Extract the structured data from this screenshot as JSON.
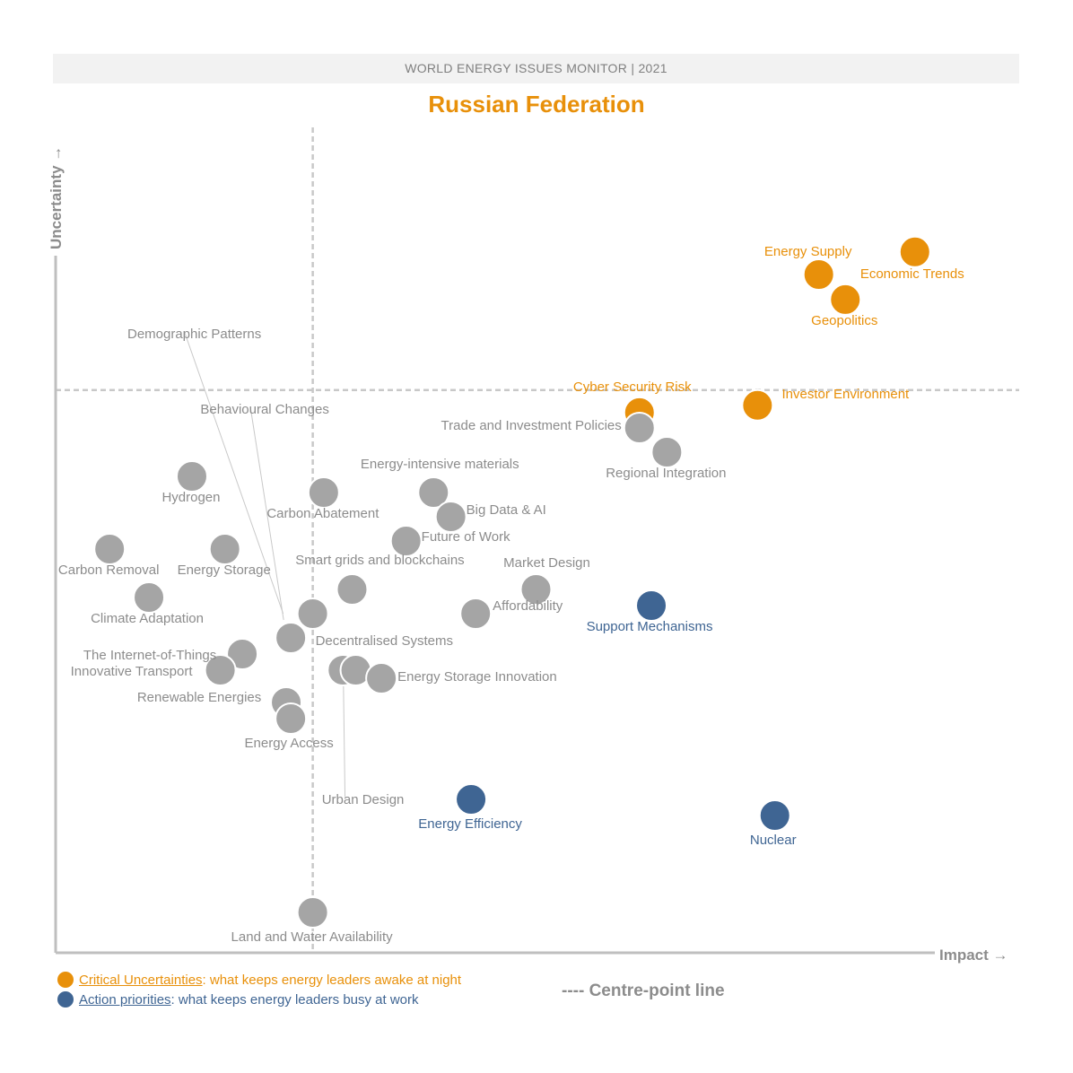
{
  "header": {
    "banner": "WORLD ENERGY ISSUES MONITOR | 2021",
    "title": "Russian Federation"
  },
  "legend": {
    "critical_key": "Critical Uncertainties",
    "critical_text": ": what keeps energy leaders awake at night",
    "action_key": "Action priorities",
    "action_text": ": what keeps energy leaders busy at work",
    "centre_line": "---- Centre-point line"
  },
  "colors": {
    "critical": "#e8900a",
    "action": "#3f6593",
    "neutral": "#a5a5a5",
    "axis": "#bfbfbf",
    "label_grey": "#8c8c8c"
  },
  "chart_data": {
    "type": "scatter",
    "xlabel": "Impact",
    "ylabel": "Uncertainty",
    "xlim": [
      0,
      100
    ],
    "ylim": [
      0,
      100
    ],
    "centre_x": 28.1,
    "centre_y": 69.7,
    "points": [
      {
        "name": "Economic Trends",
        "x": 93.9,
        "y": 86.8,
        "category": "critical"
      },
      {
        "name": "Energy Supply",
        "x": 83.4,
        "y": 84.0,
        "category": "critical"
      },
      {
        "name": "Geopolitics",
        "x": 86.3,
        "y": 80.9,
        "category": "critical"
      },
      {
        "name": "Investor Environment",
        "x": 76.7,
        "y": 67.8,
        "category": "critical"
      },
      {
        "name": "Cyber Security Risk",
        "x": 63.8,
        "y": 66.9,
        "category": "critical"
      },
      {
        "name": "Trade and Investment Policies",
        "x": 63.8,
        "y": 65.0,
        "category": "neutral"
      },
      {
        "name": "Regional Integration",
        "x": 66.8,
        "y": 62.0,
        "category": "neutral"
      },
      {
        "name": "Hydrogen",
        "x": 14.9,
        "y": 59.0,
        "category": "neutral"
      },
      {
        "name": "Carbon Abatement",
        "x": 29.3,
        "y": 57.0,
        "category": "neutral"
      },
      {
        "name": "Energy-intensive materials",
        "x": 41.3,
        "y": 57.0,
        "category": "neutral"
      },
      {
        "name": "Big Data & AI",
        "x": 43.2,
        "y": 54.0,
        "category": "neutral"
      },
      {
        "name": "Future of Work",
        "x": 38.3,
        "y": 51.0,
        "category": "neutral"
      },
      {
        "name": "Carbon Removal",
        "x": 5.9,
        "y": 50.0,
        "category": "neutral"
      },
      {
        "name": "Energy Storage",
        "x": 18.5,
        "y": 50.0,
        "category": "neutral"
      },
      {
        "name": "Smart grids and blockchains",
        "x": 32.4,
        "y": 45.0,
        "category": "neutral"
      },
      {
        "name": "Market Design",
        "x": 52.5,
        "y": 45.0,
        "category": "neutral"
      },
      {
        "name": "Climate Adaptation",
        "x": 10.2,
        "y": 44.0,
        "category": "neutral"
      },
      {
        "name": "Support Mechanisms",
        "x": 65.1,
        "y": 43.0,
        "category": "action"
      },
      {
        "name": "Demographic Patterns",
        "x": 28.1,
        "y": 42.0,
        "category": "neutral"
      },
      {
        "name": "Affordability",
        "x": 45.9,
        "y": 42.0,
        "category": "neutral"
      },
      {
        "name": "Behavioural Changes",
        "x": 25.7,
        "y": 39.0,
        "category": "neutral"
      },
      {
        "name": "The Internet-of-Things",
        "x": 20.4,
        "y": 37.0,
        "category": "neutral"
      },
      {
        "name": "Innovative Transport",
        "x": 18.0,
        "y": 35.0,
        "category": "neutral"
      },
      {
        "name": "Decentralised Systems",
        "x": 31.4,
        "y": 35.0,
        "category": "neutral"
      },
      {
        "name": "Urban Design",
        "x": 32.8,
        "y": 35.0,
        "category": "neutral"
      },
      {
        "name": "Energy Storage Innovation",
        "x": 35.6,
        "y": 34.0,
        "category": "neutral"
      },
      {
        "name": "Renewable Energies",
        "x": 25.2,
        "y": 31.0,
        "category": "neutral"
      },
      {
        "name": "Energy Access",
        "x": 25.7,
        "y": 29.0,
        "category": "neutral"
      },
      {
        "name": "Energy Efficiency",
        "x": 45.4,
        "y": 19.0,
        "category": "action"
      },
      {
        "name": "Nuclear",
        "x": 78.6,
        "y": 17.0,
        "category": "action"
      },
      {
        "name": "Land and Water Availability",
        "x": 28.1,
        "y": 5.0,
        "category": "neutral"
      }
    ]
  }
}
